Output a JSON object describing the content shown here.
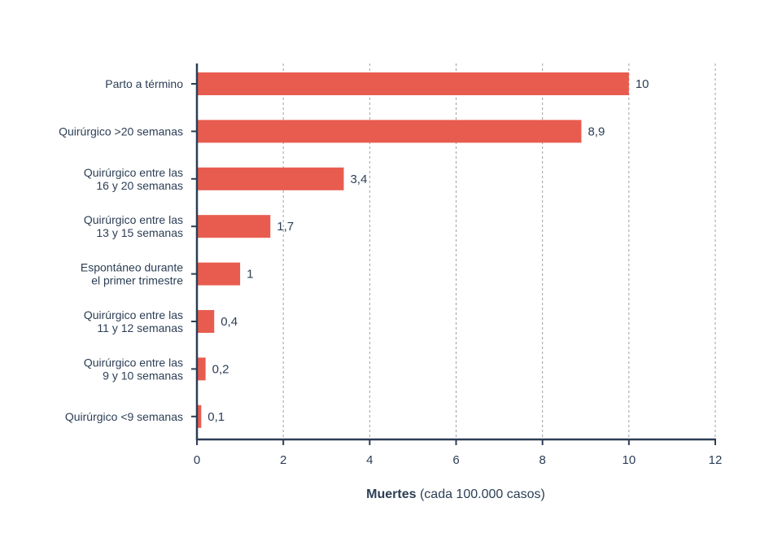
{
  "chart_data": {
    "type": "bar",
    "orientation": "horizontal",
    "categories": [
      [
        "Parto a término"
      ],
      [
        "Quirúrgico >20 semanas"
      ],
      [
        "Quirúrgico entre las",
        "16  y 20 semanas"
      ],
      [
        "Quirúrgico entre las",
        "13 y 15 semanas"
      ],
      [
        "Espontáneo durante",
        "el primer trimestre"
      ],
      [
        "Quirúrgico entre las",
        "11 y 12 semanas"
      ],
      [
        "Quirúrgico entre las",
        "9 y 10 semanas"
      ],
      [
        "Quirúrgico <9 semanas"
      ]
    ],
    "values": [
      10,
      8.9,
      3.4,
      1.7,
      1,
      0.4,
      0.2,
      0.1
    ],
    "value_labels": [
      "10",
      "8,9",
      "3,4",
      "1,7",
      "1",
      "0,4",
      "0,2",
      "0,1"
    ],
    "xlim": [
      0,
      12
    ],
    "xticks": [
      0,
      2,
      4,
      6,
      8,
      10,
      12
    ],
    "xlabel_bold": "Muertes",
    "xlabel_rest": " (cada 100.000 casos)",
    "grid": "vertical dashed",
    "colors": {
      "bar": "#e85c4f",
      "axis": "#2c3e55",
      "grid": "#9aa0a6"
    }
  }
}
